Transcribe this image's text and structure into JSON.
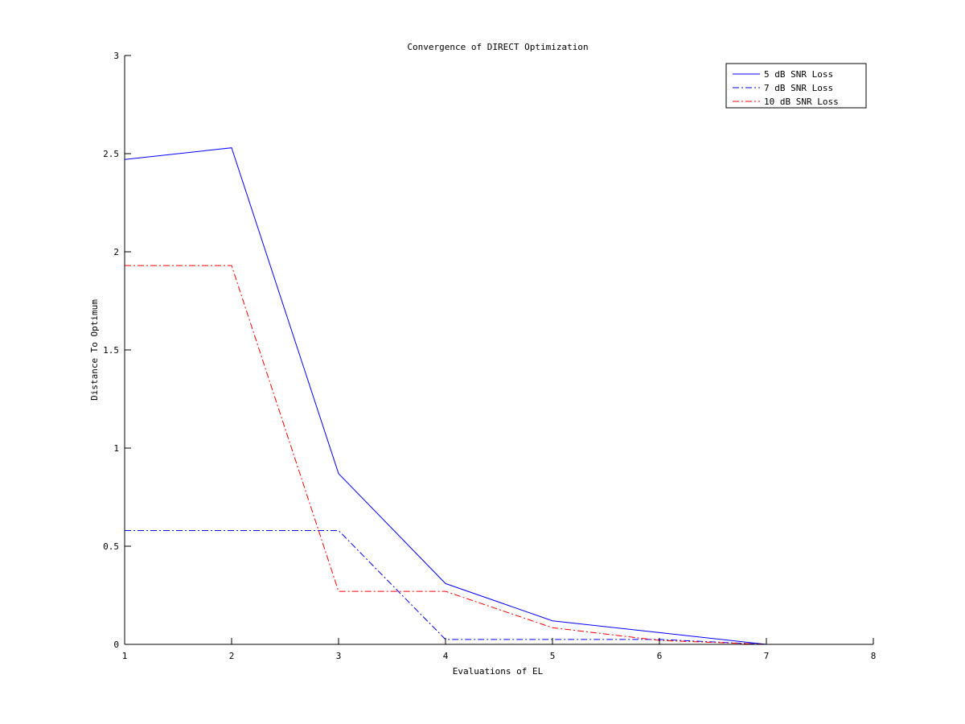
{
  "chart_data": {
    "type": "line",
    "title": "Convergence of DIRECT Optimization",
    "xlabel": "Evaluations of EL",
    "ylabel": "Distance To Optimum",
    "xlim": [
      1,
      8
    ],
    "ylim": [
      0,
      3
    ],
    "xticks": [
      1,
      2,
      3,
      4,
      5,
      6,
      7,
      8
    ],
    "xtick_labels": [
      "1",
      "2",
      "3",
      "4",
      "5",
      "6",
      "7",
      "8"
    ],
    "yticks": [
      0,
      0.5,
      1,
      1.5,
      2,
      2.5,
      3
    ],
    "ytick_labels": [
      "0",
      "0.5",
      "1",
      "1.5",
      "2",
      "2.5",
      "3"
    ],
    "grid": false,
    "legend_position": "top-right",
    "x": [
      1,
      2,
      3,
      4,
      5,
      6,
      7,
      8
    ],
    "series": [
      {
        "name": "5 dB SNR Loss",
        "values": [
          2.47,
          2.53,
          0.87,
          0.31,
          0.12,
          0.06,
          0.0,
          0.0
        ],
        "color": "#0000ff",
        "line_style": "solid"
      },
      {
        "name": "7 dB SNR Loss",
        "values": [
          0.58,
          0.58,
          0.58,
          0.025,
          0.025,
          0.025,
          0.0,
          0.0
        ],
        "color": "#0000ff",
        "line_style": "dash-dot"
      },
      {
        "name": "10 dB SNR Loss",
        "values": [
          1.93,
          1.93,
          0.27,
          0.27,
          0.085,
          0.02,
          0.0,
          0.0
        ],
        "color": "#ff0000",
        "line_style": "dash-dot"
      }
    ]
  }
}
